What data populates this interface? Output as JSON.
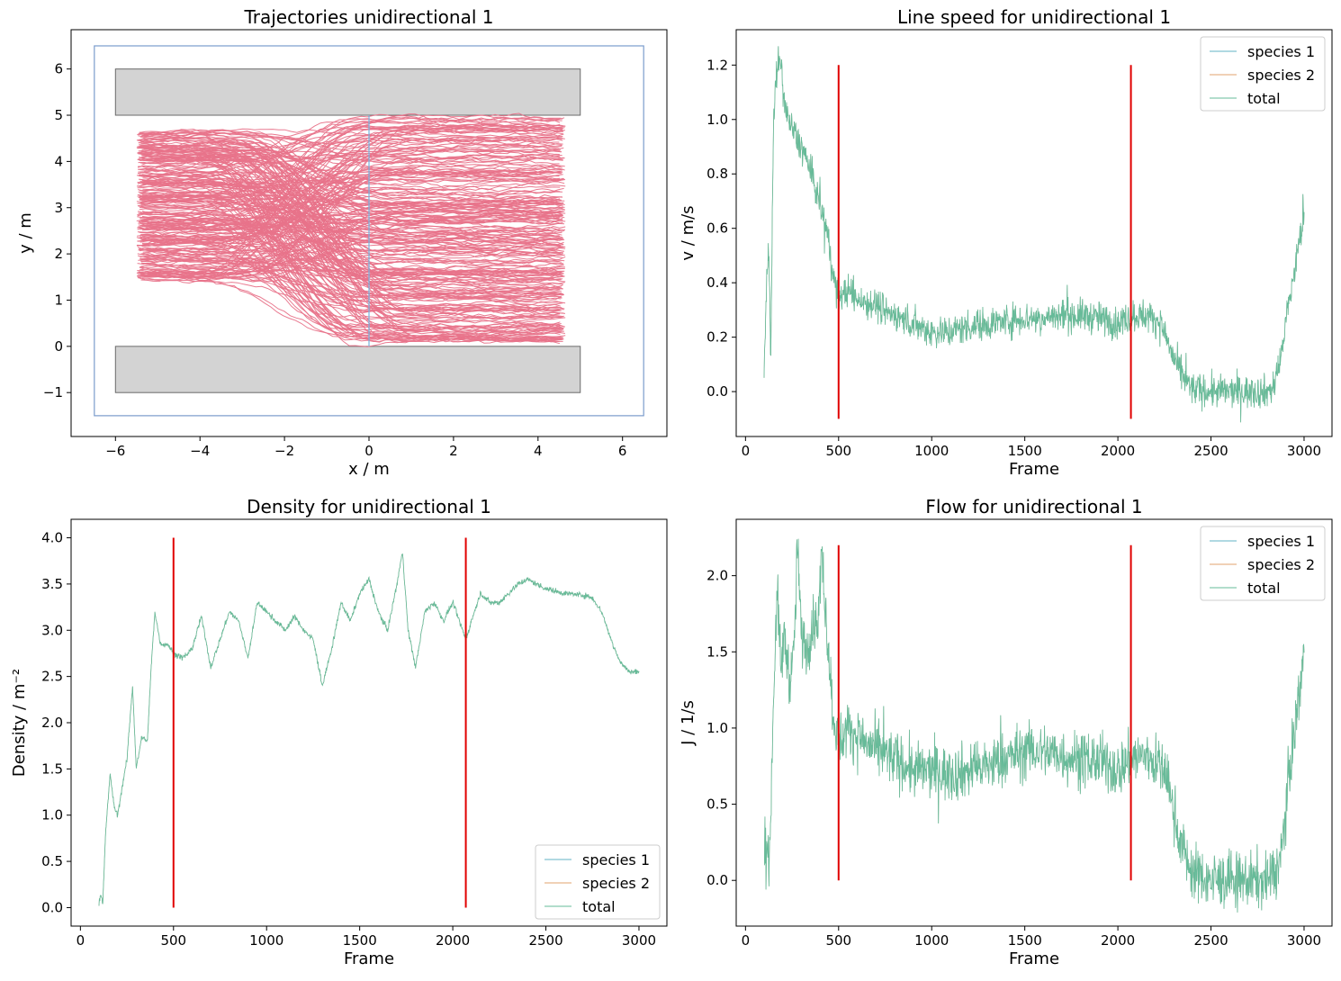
{
  "colors": {
    "traj": "#e8738a",
    "wall": "#d3d3d3",
    "wall_edge": "#6b6b6b",
    "frame_box": "#7b9ccc",
    "measure_line": "#74b3e0",
    "species1": "#62b3c5",
    "species2": "#e0a36d",
    "total": "#66bb99",
    "marker": "#e00000"
  },
  "chart_data": [
    {
      "id": "traj",
      "type": "line",
      "title": "Trajectories unidirectional 1",
      "xlabel": "x / m",
      "ylabel": "y / m",
      "xlim": [
        -7.05,
        7.05
      ],
      "ylim": [
        -1.95,
        6.85
      ],
      "xticks": [
        -6,
        -4,
        -2,
        0,
        2,
        4,
        6
      ],
      "yticks": [
        -1,
        0,
        1,
        2,
        3,
        4,
        5,
        6
      ],
      "xtick_labels": [
        "−6",
        "−4",
        "−2",
        "0",
        "2",
        "4",
        "6"
      ],
      "ytick_labels": [
        "−1",
        "0",
        "1",
        "2",
        "3",
        "4",
        "5",
        "6"
      ],
      "walls": [
        {
          "x0": -6,
          "x1": 5,
          "y0": 5,
          "y1": 6
        },
        {
          "x0": -6,
          "x1": 5,
          "y0": -1,
          "y1": 0
        }
      ],
      "bounding_box": {
        "x0": -6.5,
        "x1": 6.5,
        "y0": -1.5,
        "y1": 6.5
      },
      "measurement_line": {
        "x": 0,
        "y0": 0,
        "y1": 5
      },
      "trajectories": {
        "count": 260,
        "start_x_range": [
          -5.5,
          -5.35
        ],
        "end_x_range": [
          4.5,
          4.65
        ],
        "entry_y_range": [
          1.45,
          4.65
        ],
        "exit_y_range": [
          0.1,
          4.95
        ]
      }
    },
    {
      "id": "speed",
      "type": "line",
      "title": "Line speed for unidirectional 1",
      "xlabel": "Frame",
      "ylabel": "v / m/s",
      "xlim": [
        -50,
        3150
      ],
      "ylim": [
        -0.165,
        1.33
      ],
      "xticks": [
        0,
        500,
        1000,
        1500,
        2000,
        2500,
        3000
      ],
      "yticks": [
        0.0,
        0.2,
        0.4,
        0.6,
        0.8,
        1.0,
        1.2
      ],
      "xtick_labels": [
        "0",
        "500",
        "1000",
        "1500",
        "2000",
        "2500",
        "3000"
      ],
      "ytick_labels": [
        "0.0",
        "0.2",
        "0.4",
        "0.6",
        "0.8",
        "1.0",
        "1.2"
      ],
      "legend_position": "top-right",
      "legend": [
        "species 1",
        "species 2",
        "total"
      ],
      "markers": [
        {
          "x": 500,
          "y0": -0.1,
          "y1": 1.2
        },
        {
          "x": 2070,
          "y0": -0.1,
          "y1": 1.2
        }
      ],
      "series_name": "total",
      "x_range": [
        100,
        3000
      ],
      "control_points": [
        [
          100,
          0.05
        ],
        [
          115,
          0.45
        ],
        [
          125,
          0.55
        ],
        [
          135,
          0.1
        ],
        [
          150,
          1.0
        ],
        [
          170,
          1.2
        ],
        [
          190,
          1.2
        ],
        [
          210,
          1.05
        ],
        [
          230,
          1.0
        ],
        [
          260,
          0.95
        ],
        [
          300,
          0.9
        ],
        [
          330,
          0.85
        ],
        [
          360,
          0.78
        ],
        [
          400,
          0.7
        ],
        [
          430,
          0.6
        ],
        [
          450,
          0.55
        ],
        [
          470,
          0.42
        ],
        [
          500,
          0.35
        ],
        [
          550,
          0.37
        ],
        [
          600,
          0.34
        ],
        [
          700,
          0.32
        ],
        [
          800,
          0.28
        ],
        [
          900,
          0.25
        ],
        [
          1000,
          0.22
        ],
        [
          1100,
          0.22
        ],
        [
          1200,
          0.24
        ],
        [
          1300,
          0.25
        ],
        [
          1400,
          0.26
        ],
        [
          1500,
          0.27
        ],
        [
          1600,
          0.27
        ],
        [
          1700,
          0.28
        ],
        [
          1800,
          0.28
        ],
        [
          1900,
          0.27
        ],
        [
          2000,
          0.25
        ],
        [
          2070,
          0.28
        ],
        [
          2150,
          0.28
        ],
        [
          2220,
          0.26
        ],
        [
          2260,
          0.2
        ],
        [
          2300,
          0.12
        ],
        [
          2350,
          0.05
        ],
        [
          2400,
          0.01
        ],
        [
          2500,
          0.0
        ],
        [
          2600,
          0.0
        ],
        [
          2700,
          0.0
        ],
        [
          2800,
          0.0
        ],
        [
          2840,
          0.02
        ],
        [
          2870,
          0.1
        ],
        [
          2900,
          0.25
        ],
        [
          2950,
          0.45
        ],
        [
          3000,
          0.65
        ]
      ],
      "noise": 0.03
    },
    {
      "id": "density",
      "type": "line",
      "title": "Density for unidirectional 1",
      "xlabel": "Frame",
      "ylabel": "Density / m⁻²",
      "xlim": [
        -50,
        3150
      ],
      "ylim": [
        -0.2,
        4.2
      ],
      "xticks": [
        0,
        500,
        1000,
        1500,
        2000,
        2500,
        3000
      ],
      "yticks": [
        0.0,
        0.5,
        1.0,
        1.5,
        2.0,
        2.5,
        3.0,
        3.5,
        4.0
      ],
      "xtick_labels": [
        "0",
        "500",
        "1000",
        "1500",
        "2000",
        "2500",
        "3000"
      ],
      "ytick_labels": [
        "0.0",
        "0.5",
        "1.0",
        "1.5",
        "2.0",
        "2.5",
        "3.0",
        "3.5",
        "4.0"
      ],
      "legend_position": "bottom-right",
      "legend": [
        "species 1",
        "species 2",
        "total"
      ],
      "markers": [
        {
          "x": 500,
          "y0": 0.0,
          "y1": 4.0
        },
        {
          "x": 2070,
          "y0": 0.0,
          "y1": 4.0
        }
      ],
      "series_name": "total",
      "x_range": [
        100,
        3000
      ],
      "control_points": [
        [
          100,
          0.05
        ],
        [
          110,
          0.15
        ],
        [
          120,
          0.05
        ],
        [
          135,
          0.8
        ],
        [
          160,
          1.45
        ],
        [
          180,
          1.1
        ],
        [
          200,
          1.0
        ],
        [
          220,
          1.25
        ],
        [
          250,
          1.6
        ],
        [
          280,
          2.4
        ],
        [
          300,
          1.5
        ],
        [
          330,
          1.85
        ],
        [
          360,
          1.8
        ],
        [
          380,
          2.6
        ],
        [
          400,
          3.2
        ],
        [
          430,
          2.85
        ],
        [
          470,
          2.85
        ],
        [
          500,
          2.75
        ],
        [
          550,
          2.7
        ],
        [
          600,
          2.8
        ],
        [
          650,
          3.15
        ],
        [
          700,
          2.6
        ],
        [
          750,
          2.9
        ],
        [
          800,
          3.2
        ],
        [
          850,
          3.1
        ],
        [
          900,
          2.7
        ],
        [
          950,
          3.3
        ],
        [
          1000,
          3.2
        ],
        [
          1050,
          3.1
        ],
        [
          1100,
          3.0
        ],
        [
          1150,
          3.15
        ],
        [
          1200,
          3.0
        ],
        [
          1250,
          2.9
        ],
        [
          1300,
          2.4
        ],
        [
          1350,
          2.8
        ],
        [
          1400,
          3.3
        ],
        [
          1450,
          3.1
        ],
        [
          1500,
          3.4
        ],
        [
          1550,
          3.55
        ],
        [
          1600,
          3.2
        ],
        [
          1650,
          3.0
        ],
        [
          1700,
          3.5
        ],
        [
          1730,
          3.85
        ],
        [
          1760,
          3.0
        ],
        [
          1800,
          2.6
        ],
        [
          1850,
          3.2
        ],
        [
          1900,
          3.3
        ],
        [
          1950,
          3.1
        ],
        [
          2000,
          3.3
        ],
        [
          2070,
          2.9
        ],
        [
          2100,
          3.1
        ],
        [
          2150,
          3.4
        ],
        [
          2200,
          3.3
        ],
        [
          2250,
          3.3
        ],
        [
          2300,
          3.4
        ],
        [
          2350,
          3.5
        ],
        [
          2400,
          3.55
        ],
        [
          2500,
          3.45
        ],
        [
          2600,
          3.4
        ],
        [
          2700,
          3.38
        ],
        [
          2750,
          3.35
        ],
        [
          2800,
          3.2
        ],
        [
          2850,
          2.9
        ],
        [
          2900,
          2.65
        ],
        [
          2950,
          2.55
        ],
        [
          3000,
          2.55
        ]
      ],
      "noise": 0.015
    },
    {
      "id": "flow",
      "type": "line",
      "title": "Flow for unidirectional 1",
      "xlabel": "Frame",
      "ylabel": "J / 1/s",
      "xlim": [
        -50,
        3150
      ],
      "ylim": [
        -0.3,
        2.37
      ],
      "xticks": [
        0,
        500,
        1000,
        1500,
        2000,
        2500,
        3000
      ],
      "yticks": [
        0.0,
        0.5,
        1.0,
        1.5,
        2.0
      ],
      "xtick_labels": [
        "0",
        "500",
        "1000",
        "1500",
        "2000",
        "2500",
        "3000"
      ],
      "ytick_labels": [
        "0.0",
        "0.5",
        "1.0",
        "1.5",
        "2.0"
      ],
      "legend_position": "top-right",
      "legend": [
        "species 1",
        "species 2",
        "total"
      ],
      "markers": [
        {
          "x": 500,
          "y0": 0.0,
          "y1": 2.2
        },
        {
          "x": 2070,
          "y0": 0.0,
          "y1": 2.2
        }
      ],
      "series_name": "total",
      "x_range": [
        100,
        3000
      ],
      "control_points": [
        [
          100,
          0.02
        ],
        [
          115,
          0.25
        ],
        [
          130,
          0.15
        ],
        [
          150,
          1.2
        ],
        [
          170,
          1.9
        ],
        [
          190,
          1.4
        ],
        [
          210,
          1.6
        ],
        [
          240,
          1.3
        ],
        [
          260,
          1.5
        ],
        [
          280,
          2.2
        ],
        [
          300,
          1.6
        ],
        [
          330,
          1.5
        ],
        [
          360,
          1.7
        ],
        [
          390,
          1.7
        ],
        [
          410,
          2.15
        ],
        [
          440,
          1.6
        ],
        [
          470,
          1.1
        ],
        [
          500,
          0.9
        ],
        [
          550,
          1.0
        ],
        [
          600,
          0.95
        ],
        [
          700,
          0.85
        ],
        [
          800,
          0.8
        ],
        [
          900,
          0.72
        ],
        [
          1000,
          0.72
        ],
        [
          1100,
          0.7
        ],
        [
          1200,
          0.72
        ],
        [
          1300,
          0.75
        ],
        [
          1400,
          0.8
        ],
        [
          1500,
          0.85
        ],
        [
          1600,
          0.85
        ],
        [
          1700,
          0.82
        ],
        [
          1800,
          0.8
        ],
        [
          1900,
          0.78
        ],
        [
          2000,
          0.72
        ],
        [
          2070,
          0.8
        ],
        [
          2150,
          0.82
        ],
        [
          2200,
          0.78
        ],
        [
          2260,
          0.7
        ],
        [
          2300,
          0.45
        ],
        [
          2350,
          0.2
        ],
        [
          2400,
          0.05
        ],
        [
          2500,
          0.0
        ],
        [
          2600,
          0.0
        ],
        [
          2700,
          0.0
        ],
        [
          2800,
          0.0
        ],
        [
          2850,
          0.05
        ],
        [
          2880,
          0.2
        ],
        [
          2920,
          0.7
        ],
        [
          2960,
          1.1
        ],
        [
          3000,
          1.5
        ]
      ],
      "noise": 0.09
    }
  ]
}
